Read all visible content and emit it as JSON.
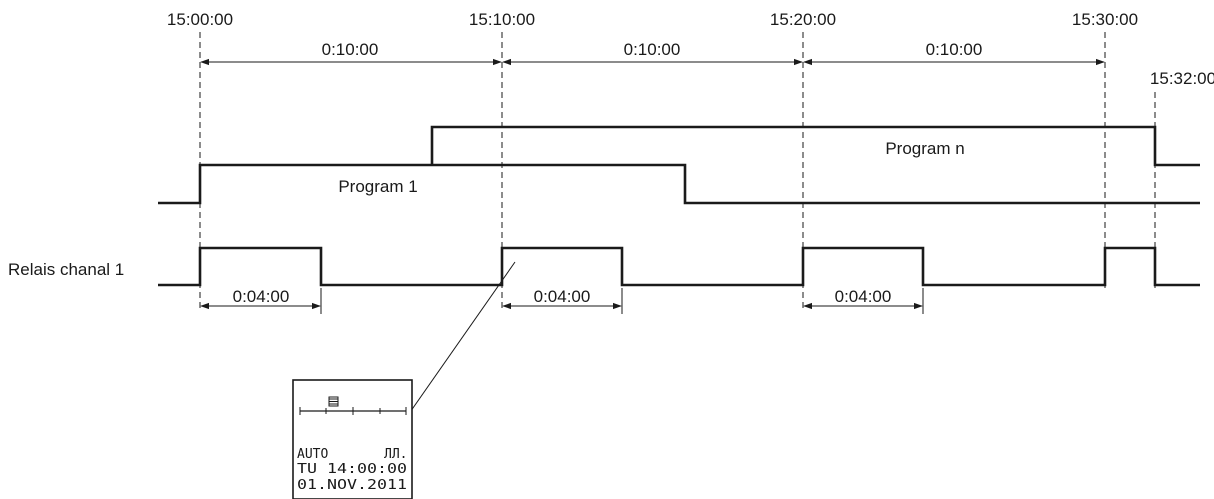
{
  "time_markers": [
    "15:00:00",
    "15:10:00",
    "15:20:00",
    "15:30:00",
    "15:32:00"
  ],
  "intervals": [
    "0:10:00",
    "0:10:00",
    "0:10:00"
  ],
  "pulse_durations": [
    "0:04:00",
    "0:04:00",
    "0:04:00"
  ],
  "signals": {
    "program_1_label": "Program 1",
    "program_n_label": "Program n",
    "relay_label": "Relais chanal 1"
  },
  "lcd": {
    "mode": "AUTO",
    "pulse_symbol": "ЛЛ.",
    "time_line": "TU 14:00:00",
    "date_line": "01.NOV.2011"
  }
}
